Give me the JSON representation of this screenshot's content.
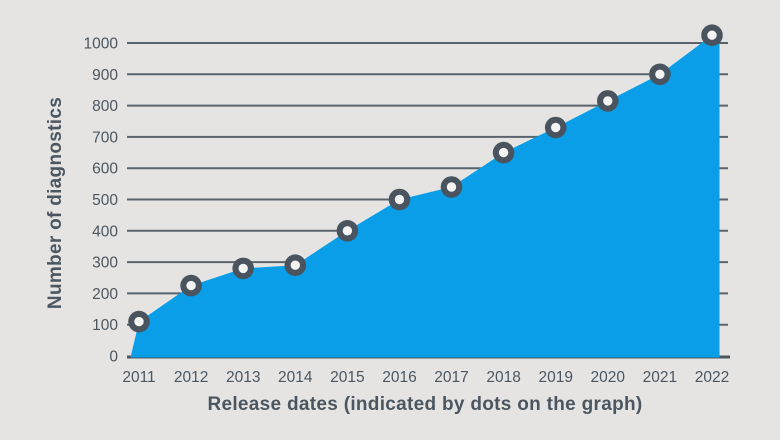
{
  "chart_data": {
    "type": "area",
    "title": "",
    "xlabel": "Release dates (indicated by dots on the graph)",
    "ylabel": "Number of diagnostics",
    "categories": [
      "2011",
      "2012",
      "2013",
      "2014",
      "2015",
      "2016",
      "2017",
      "2018",
      "2019",
      "2020",
      "2021",
      "2022"
    ],
    "values": [
      110,
      225,
      280,
      290,
      400,
      500,
      540,
      650,
      730,
      815,
      900,
      1025
    ],
    "ylim": [
      0,
      1000
    ],
    "yticks": [
      0,
      100,
      200,
      300,
      400,
      500,
      600,
      700,
      800,
      900,
      1000
    ],
    "grid": true,
    "legend": "none",
    "marker_style": "ring-dot",
    "colors": {
      "area": "#0A9EE8",
      "axis": "#4C5660",
      "background": "#E5E4E3",
      "marker_ring": "#4A545E",
      "marker_center": "#F4F4F4"
    }
  }
}
